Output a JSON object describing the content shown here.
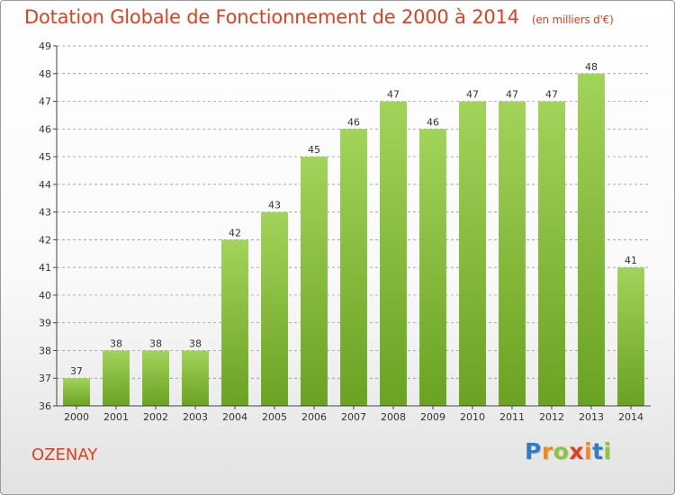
{
  "header": {
    "title": "Dotation Globale de Fonctionnement de 2000 à 2014",
    "unit": "(en milliers d'€)"
  },
  "footer": {
    "commune": "OZENAY",
    "logo_text": "Proxiti",
    "logo_letters": [
      "P",
      "r",
      "o",
      "x",
      "i",
      "t",
      "i"
    ],
    "logo_colors": [
      "#2a7fc8",
      "#f08a1c",
      "#8cc63f",
      "#e0401e",
      "#f08a1c",
      "#2a7fc8",
      "#8cc63f"
    ]
  },
  "colors": {
    "bar_top": "#a2d35a",
    "bar_bottom": "#6aa222",
    "axis": "#444444",
    "grid": "#888888",
    "title": "#e0401e"
  },
  "chart_data": {
    "type": "bar",
    "title": "Dotation Globale de Fonctionnement de 2000 à 2014",
    "subtitle": "(en milliers d'€)",
    "categories": [
      "2000",
      "2001",
      "2002",
      "2003",
      "2004",
      "2005",
      "2006",
      "2007",
      "2008",
      "2009",
      "2010",
      "2011",
      "2012",
      "2013",
      "2014"
    ],
    "values": [
      37,
      38,
      38,
      38,
      42,
      43,
      45,
      46,
      47,
      46,
      47,
      47,
      47,
      48,
      41
    ],
    "ylim": [
      36,
      49
    ],
    "yticks": [
      36,
      37,
      38,
      39,
      40,
      41,
      42,
      43,
      44,
      45,
      46,
      47,
      48,
      49
    ],
    "grid": "horizontal dashed",
    "legend": "none",
    "xlabel": "",
    "ylabel": ""
  }
}
